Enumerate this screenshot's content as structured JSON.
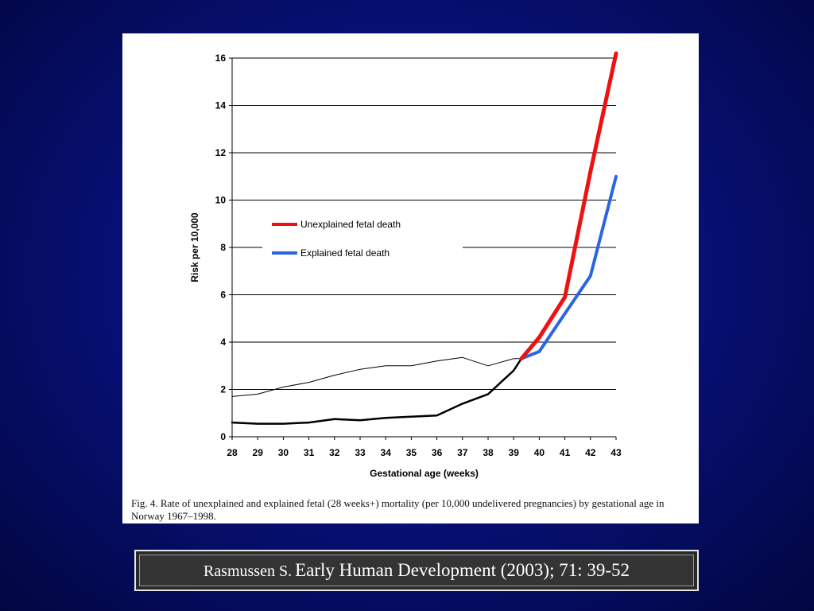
{
  "chart_data": {
    "type": "line",
    "xlabel": "Gestational age (weeks)",
    "ylabel": "Risk per 10,000",
    "x": [
      28,
      29,
      30,
      31,
      32,
      33,
      34,
      35,
      36,
      37,
      38,
      39,
      40,
      41,
      42,
      43
    ],
    "xlim": [
      28,
      43
    ],
    "ylim": [
      0,
      16
    ],
    "yticks": [
      0,
      2,
      4,
      6,
      8,
      10,
      12,
      14,
      16
    ],
    "grid": "horizontal",
    "legend_position": "center-left",
    "series": [
      {
        "name": "",
        "color": "#000000",
        "width": 1,
        "x": [
          28,
          29,
          30,
          31,
          32,
          33,
          34,
          35,
          36,
          37,
          38,
          39,
          39.3
        ],
        "values": [
          1.7,
          1.8,
          2.1,
          2.3,
          2.6,
          2.85,
          3.0,
          3.0,
          3.2,
          3.35,
          3.0,
          3.3,
          3.3
        ]
      },
      {
        "name": "",
        "color": "#000000",
        "width": 2.5,
        "x": [
          28,
          29,
          30,
          31,
          32,
          33,
          34,
          35,
          36,
          37,
          38,
          39,
          39.3
        ],
        "values": [
          0.6,
          0.55,
          0.55,
          0.6,
          0.75,
          0.7,
          0.8,
          0.85,
          0.9,
          1.4,
          1.8,
          2.8,
          3.3
        ]
      },
      {
        "name": "Explained fetal death",
        "color": "#2a66e0",
        "width": 4,
        "x": [
          39.3,
          40,
          41,
          42,
          43
        ],
        "values": [
          3.3,
          3.6,
          5.2,
          6.8,
          11.0
        ]
      },
      {
        "name": "Unexplained fetal death",
        "color": "#ee1111",
        "width": 5,
        "x": [
          39.3,
          40,
          41,
          42,
          43
        ],
        "values": [
          3.3,
          4.2,
          5.9,
          11.2,
          16.2
        ]
      }
    ],
    "legend": [
      {
        "label": "Unexplained fetal death",
        "color": "#ee1111"
      },
      {
        "label": "Explained fetal death",
        "color": "#2a66e0"
      }
    ]
  },
  "caption": "Fig. 4. Rate of unexplained and explained fetal (28 weeks+) mortality (per 10,000 undelivered pregnancies) by gestational age in Norway 1967–1998.",
  "citation": {
    "author": "Rasmussen S.",
    "reference": "Early Human Development (2003); 71: 39-52"
  }
}
